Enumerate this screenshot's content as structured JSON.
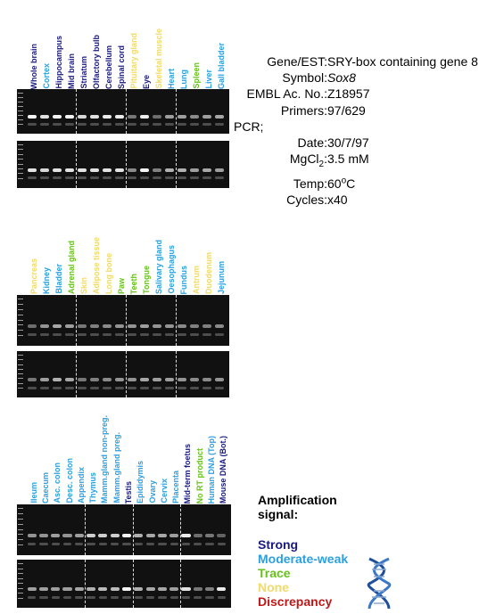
{
  "panels": [
    {
      "lanes": [
        {
          "label": "Whole brain",
          "level": "strong",
          "b1": 0.95,
          "b2": 0.85
        },
        {
          "label": "Cortex",
          "level": "moderate",
          "b1": 0.85,
          "b2": 0.8
        },
        {
          "label": "Hippocampus",
          "level": "strong",
          "b1": 0.95,
          "b2": 0.85
        },
        {
          "label": "Mid brain",
          "level": "strong",
          "b1": 0.95,
          "b2": 0.85
        },
        {
          "label": "Striatum",
          "level": "strong",
          "b1": 0.8,
          "b2": 0.85
        },
        {
          "label": "Olfactory bulb",
          "level": "strong",
          "b1": 0.85,
          "b2": 0.85
        },
        {
          "label": "Cerebellum",
          "level": "strong",
          "b1": 0.9,
          "b2": 0.85
        },
        {
          "label": "Spinal cord",
          "level": "strong",
          "b1": 0.9,
          "b2": 0.85
        },
        {
          "label": "Pituitary gland",
          "level": "none",
          "b1": 0.3,
          "b2": 0.4
        },
        {
          "label": "Eye",
          "level": "strong",
          "b1": 0.9,
          "b2": 0.95
        },
        {
          "label": "Skeletal muscle",
          "level": "none",
          "b1": 0.25,
          "b2": 0.35
        },
        {
          "label": "Heart",
          "level": "moderate",
          "b1": 0.5,
          "b2": 0.6
        },
        {
          "label": "Lung",
          "level": "moderate",
          "b1": 0.5,
          "b2": 0.6
        },
        {
          "label": "Spleen",
          "level": "trace",
          "b1": 0.4,
          "b2": 0.5
        },
        {
          "label": "Liver",
          "level": "moderate",
          "b1": 0.5,
          "b2": 0.55
        },
        {
          "label": "Gall bladder",
          "level": "moderate",
          "b1": 0.55,
          "b2": 0.5
        }
      ],
      "separators_after": [
        4,
        8,
        12
      ]
    },
    {
      "lanes": [
        {
          "label": "Pancreas",
          "level": "none",
          "b1": 0.25,
          "b2": 0.3
        },
        {
          "label": "Kidney",
          "level": "moderate",
          "b1": 0.45,
          "b2": 0.5
        },
        {
          "label": "Bladder",
          "level": "moderate",
          "b1": 0.55,
          "b2": 0.6
        },
        {
          "label": "Adrenal gland",
          "level": "trace",
          "b1": 0.5,
          "b2": 0.55
        },
        {
          "label": "Skin",
          "level": "none",
          "b1": 0.3,
          "b2": 0.3
        },
        {
          "label": "Adipose tissue",
          "level": "none",
          "b1": 0.35,
          "b2": 0.35
        },
        {
          "label": "Long bone",
          "level": "none",
          "b1": 0.4,
          "b2": 0.4
        },
        {
          "label": "Paw",
          "level": "trace",
          "b1": 0.45,
          "b2": 0.45
        },
        {
          "label": "Teeth",
          "level": "trace",
          "b1": 0.45,
          "b2": 0.45
        },
        {
          "label": "Tongue",
          "level": "trace",
          "b1": 0.5,
          "b2": 0.55
        },
        {
          "label": "Salivary gland",
          "level": "moderate",
          "b1": 0.45,
          "b2": 0.5
        },
        {
          "label": "Oesophagus",
          "level": "moderate",
          "b1": 0.45,
          "b2": 0.5
        },
        {
          "label": "Fundus",
          "level": "moderate",
          "b1": 0.4,
          "b2": 0.45
        },
        {
          "label": "Antrum",
          "level": "none",
          "b1": 0.35,
          "b2": 0.4
        },
        {
          "label": "Duodenum",
          "level": "none",
          "b1": 0.35,
          "b2": 0.4
        },
        {
          "label": "Jejunum",
          "level": "moderate",
          "b1": 0.4,
          "b2": 0.45
        }
      ],
      "separators_after": [
        4,
        8,
        12
      ]
    },
    {
      "lanes": [
        {
          "label": "Ileum",
          "level": "moderate",
          "b1": 0.45,
          "b2": 0.5
        },
        {
          "label": "Caecum",
          "level": "moderate",
          "b1": 0.45,
          "b2": 0.5
        },
        {
          "label": "Asc. colon",
          "level": "moderate",
          "b1": 0.5,
          "b2": 0.5
        },
        {
          "label": "Desc. colon",
          "level": "moderate",
          "b1": 0.45,
          "b2": 0.5
        },
        {
          "label": "Appendix",
          "level": "moderate",
          "b1": 0.5,
          "b2": 0.55
        },
        {
          "label": "Thymus",
          "level": "moderate",
          "b1": 0.75,
          "b2": 0.6
        },
        {
          "label": "Mamm.gland non-preg.",
          "level": "moderate",
          "b1": 0.75,
          "b2": 0.65
        },
        {
          "label": "Mamm.gland preg.",
          "level": "moderate",
          "b1": 0.75,
          "b2": 0.65
        },
        {
          "label": "Testis",
          "level": "strong",
          "b1": 0.95,
          "b2": 0.95
        },
        {
          "label": "Epididymis",
          "level": "moderate",
          "b1": 0.6,
          "b2": 0.6
        },
        {
          "label": "Ovary",
          "level": "moderate",
          "b1": 0.55,
          "b2": 0.55
        },
        {
          "label": "Cervix",
          "level": "moderate",
          "b1": 0.55,
          "b2": 0.55
        },
        {
          "label": "Placenta",
          "level": "moderate",
          "b1": 0.5,
          "b2": 0.5
        },
        {
          "label": "Mid-term foetus",
          "level": "strong",
          "b1": 0.9,
          "b2": 0.85
        },
        {
          "label": "No RT product",
          "level": "trace",
          "b1": 0.25,
          "b2": 0.3
        },
        {
          "label": "Human DNA (Top)",
          "level": "moderate",
          "b1": 0.3,
          "b2": 0.35
        },
        {
          "label": "Mouse DNA (Bot.)",
          "level": "strong",
          "b1": 0.2,
          "b2": 0.9
        }
      ],
      "separators_after": [
        5,
        9,
        13
      ]
    }
  ],
  "info": {
    "gene_key": "Gene/EST:",
    "gene_val": "SRY-box containing gene 8",
    "symbol_key": "Symbol:",
    "symbol_val": "Sox8",
    "embl_key": "EMBL Ac. No.:",
    "embl_val": "Z18957",
    "primers_key": "Primers:",
    "primers_val": "97/629",
    "pcr_label": "PCR;",
    "date_key": "Date:",
    "date_val": "30/7/97",
    "mgcl_key_prefix": "MgCl",
    "mgcl_key_sub": "2",
    "mgcl_key_suffix": ":",
    "mgcl_val": "3.5 mM",
    "temp_key": "Temp:",
    "temp_val_num": "60",
    "temp_val_sup": "o",
    "temp_val_unit": "C",
    "cycles_key": "Cycles:",
    "cycles_val": "x40"
  },
  "legend": {
    "title_line1": "Amplification",
    "title_line2": "signal:",
    "strong": "Strong",
    "moderate": "Moderate-weak",
    "trace": "Trace",
    "none": "None",
    "discrepancy": "Discrepancy"
  },
  "colors": {
    "strong": "#1a1a80",
    "moderate": "#2aa0e0",
    "trace": "#66c21a",
    "none": "#f0da6a",
    "discrepancy": "#c01818",
    "gel_background": "#111111"
  }
}
